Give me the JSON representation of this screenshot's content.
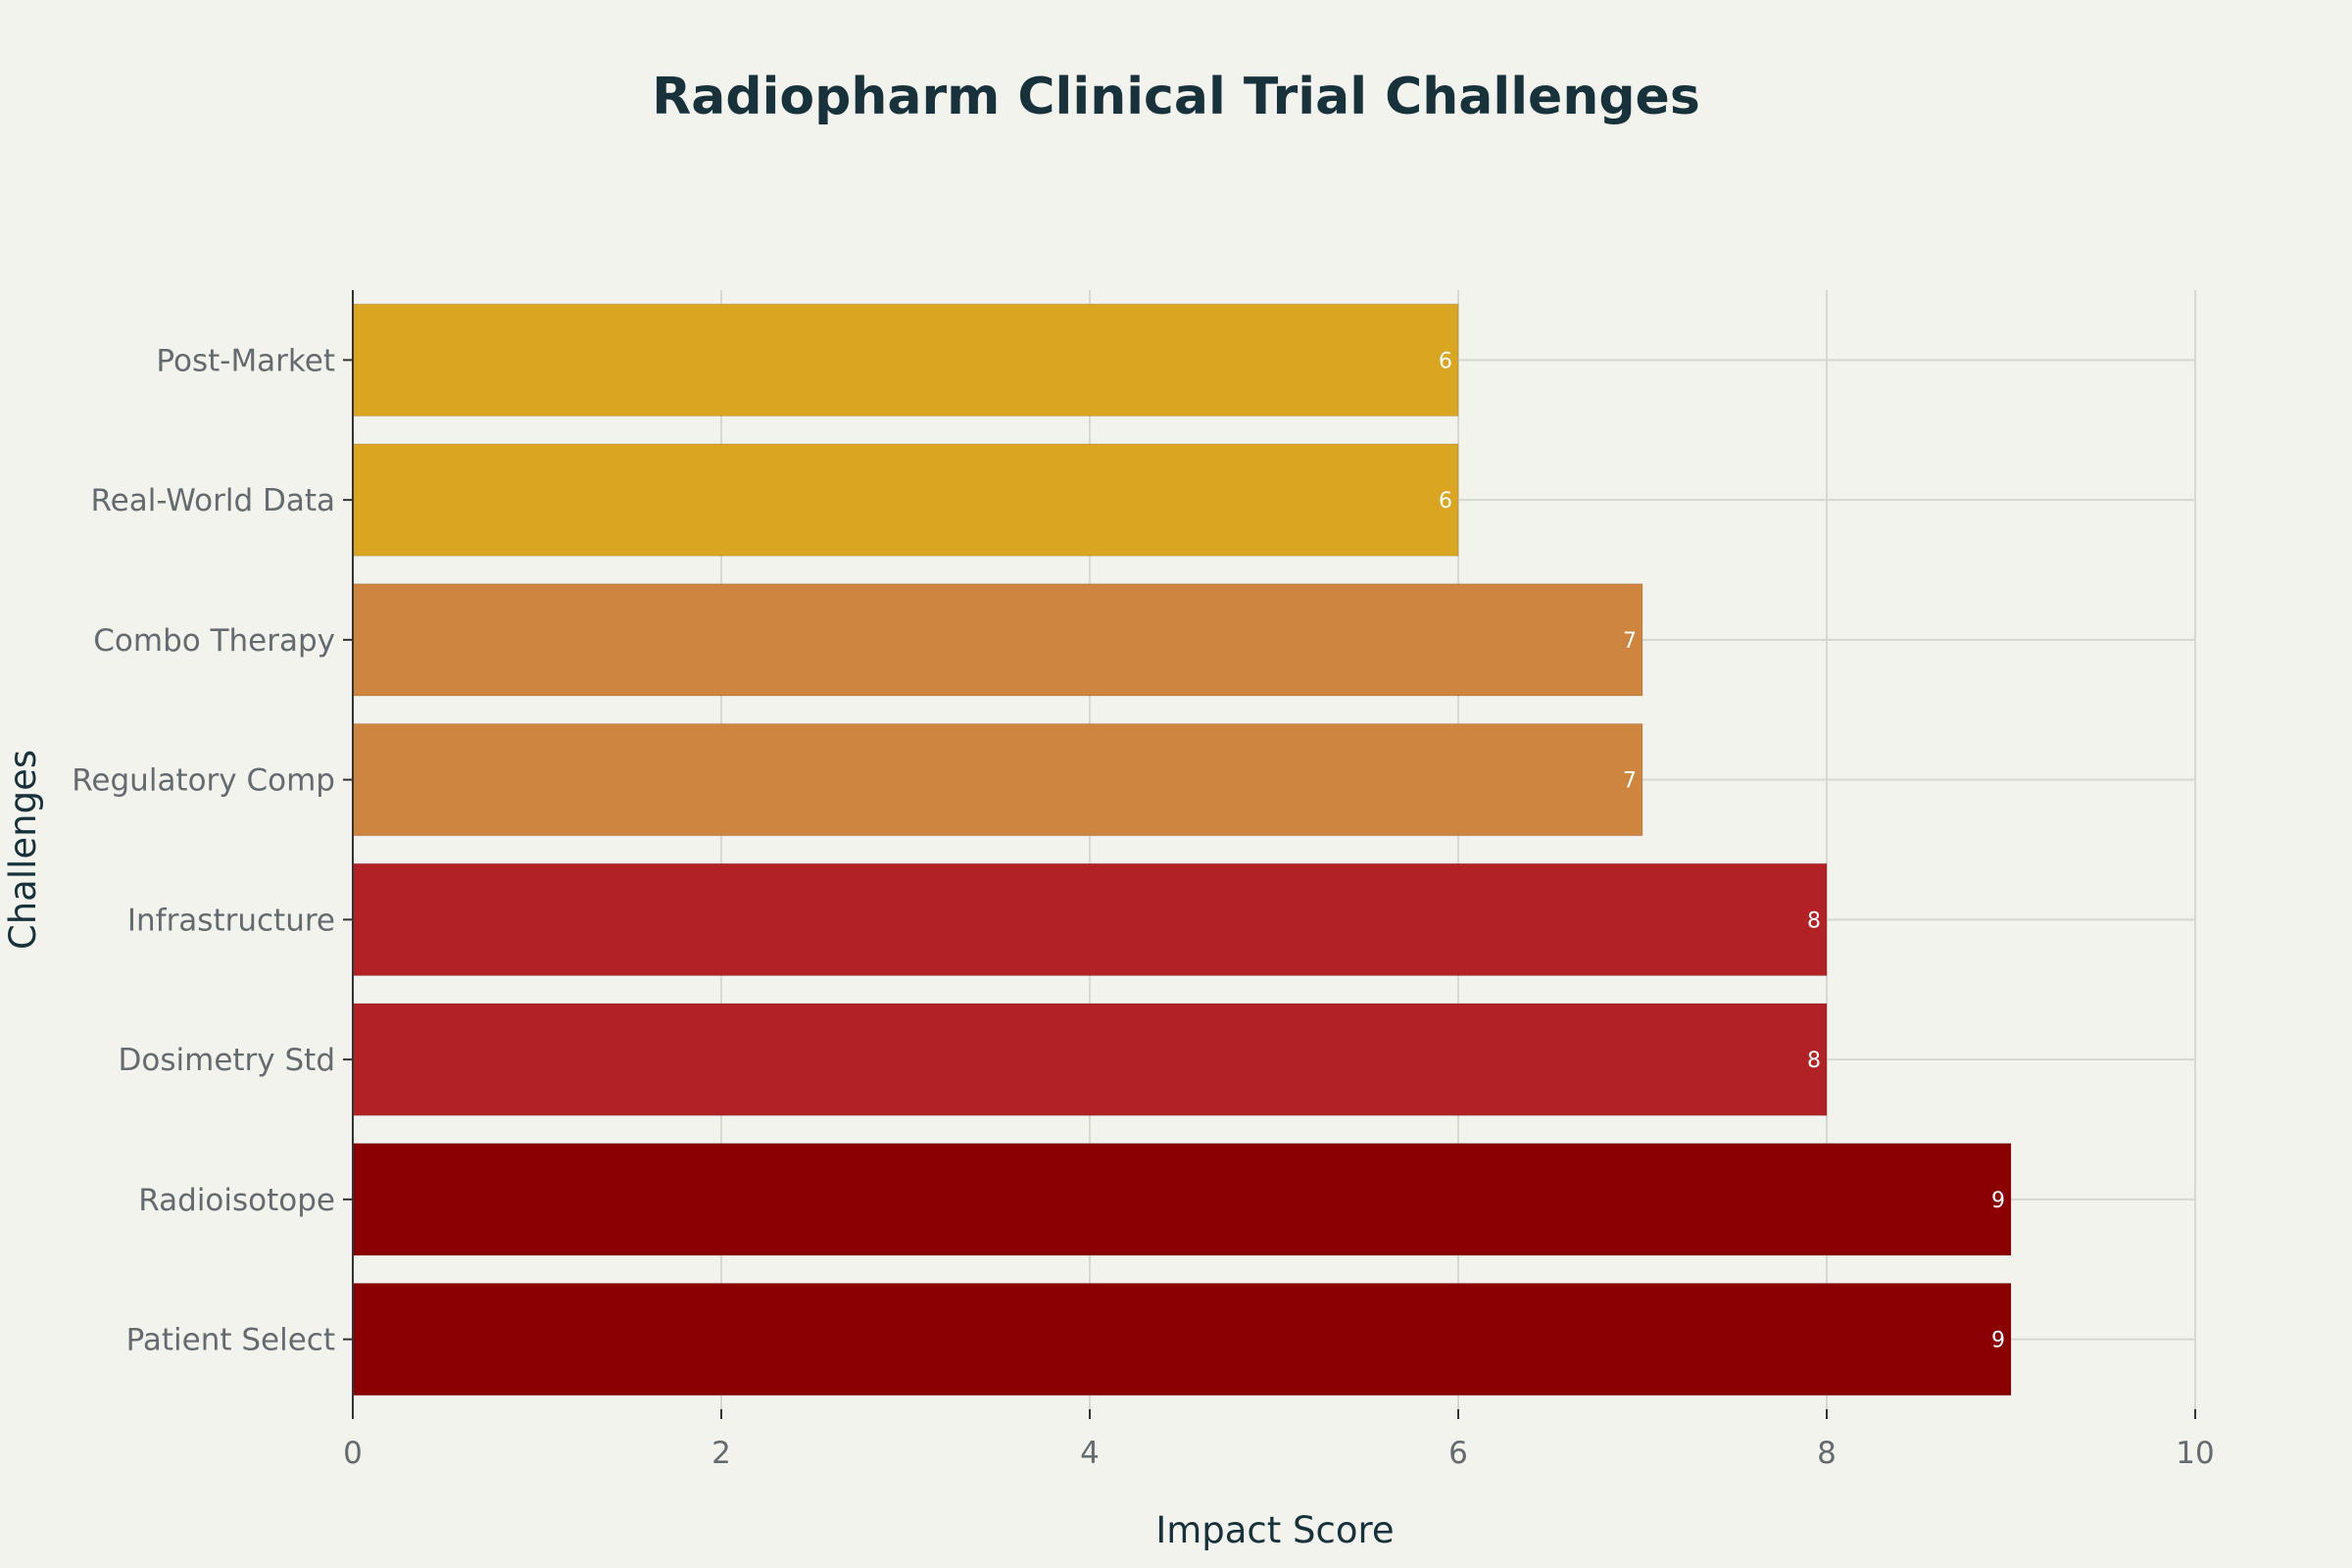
{
  "chart_data": {
    "type": "bar",
    "orientation": "horizontal",
    "title": "Radiopharm Clinical Trial Challenges",
    "xlabel": "Impact Score",
    "ylabel": "Challenges",
    "xlim": [
      0,
      10
    ],
    "x_ticks": [
      "0",
      "2",
      "4",
      "6",
      "8",
      "10"
    ],
    "grid": true,
    "legend": "none",
    "categories": [
      "Patient Select",
      "Radioisotope",
      "Dosimetry Std",
      "Infrastructure",
      "Regulatory Comp",
      "Combo Therapy",
      "Real-World Data",
      "Post-Market"
    ],
    "values": [
      9,
      9,
      8,
      8,
      7,
      7,
      6,
      6
    ],
    "value_labels": [
      "9",
      "9",
      "8",
      "8",
      "7",
      "7",
      "6",
      "6"
    ],
    "bar_colors": [
      "#8b0000",
      "#8b0000",
      "#b22225",
      "#b22225",
      "#cd853f",
      "#cd853f",
      "#daa520",
      "#daa520"
    ],
    "background_color": "#f3f3ee"
  }
}
